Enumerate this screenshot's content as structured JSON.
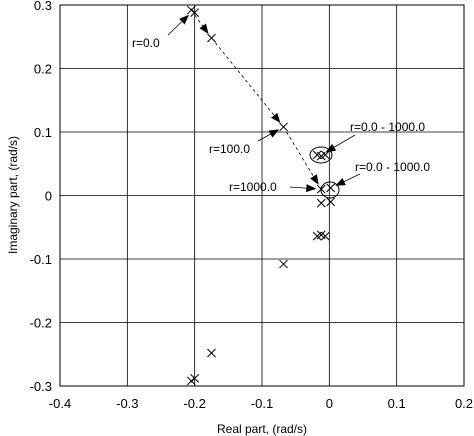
{
  "chart_data": {
    "type": "scatter",
    "xlabel": "Real part, (rad/s)",
    "ylabel": "Imaginary part, (rad/s)",
    "xlim": [
      -0.4,
      0.2
    ],
    "ylim": [
      -0.3,
      0.3
    ],
    "grid": true,
    "x_ticks": [
      "-0.4",
      "-0.3",
      "-0.2",
      "-0.1",
      "0",
      "0.1",
      "0.2"
    ],
    "y_ticks": [
      "0.3",
      "0.2",
      "0.1",
      "0",
      "-0.1",
      "-0.2",
      "-0.3"
    ],
    "marker": "x",
    "points": [
      {
        "x": -0.205,
        "y": 0.292
      },
      {
        "x": -0.2,
        "y": 0.288
      },
      {
        "x": -0.175,
        "y": 0.248
      },
      {
        "x": -0.068,
        "y": 0.108
      },
      {
        "x": -0.018,
        "y": 0.064
      },
      {
        "x": -0.012,
        "y": 0.062
      },
      {
        "x": -0.006,
        "y": 0.064
      },
      {
        "x": -0.012,
        "y": 0.01
      },
      {
        "x": 0.002,
        "y": 0.012
      },
      {
        "x": 0.002,
        "y": -0.01
      },
      {
        "x": -0.012,
        "y": -0.012
      },
      {
        "x": -0.018,
        "y": -0.064
      },
      {
        "x": -0.012,
        "y": -0.062
      },
      {
        "x": -0.006,
        "y": -0.064
      },
      {
        "x": -0.068,
        "y": -0.108
      },
      {
        "x": -0.175,
        "y": -0.248
      },
      {
        "x": -0.2,
        "y": -0.288
      },
      {
        "x": -0.205,
        "y": -0.292
      }
    ],
    "trajectory": [
      {
        "x": -0.205,
        "y": 0.292
      },
      {
        "x": -0.175,
        "y": 0.248
      },
      {
        "x": -0.068,
        "y": 0.108
      },
      {
        "x": -0.012,
        "y": 0.01
      }
    ],
    "annotations": [
      {
        "text": "r=0.0",
        "point": {
          "x": -0.203,
          "y": 0.29
        }
      },
      {
        "text": "r=100.0",
        "point": {
          "x": -0.068,
          "y": 0.108
        }
      },
      {
        "text": "r=1000.0",
        "point": {
          "x": -0.012,
          "y": 0.01
        }
      },
      {
        "text": "r=0.0 - 1000.0",
        "point": {
          "x": -0.012,
          "y": 0.064
        }
      },
      {
        "text": "r=0.0 - 1000.0",
        "point": {
          "x": 0.002,
          "y": 0.012
        }
      }
    ]
  }
}
